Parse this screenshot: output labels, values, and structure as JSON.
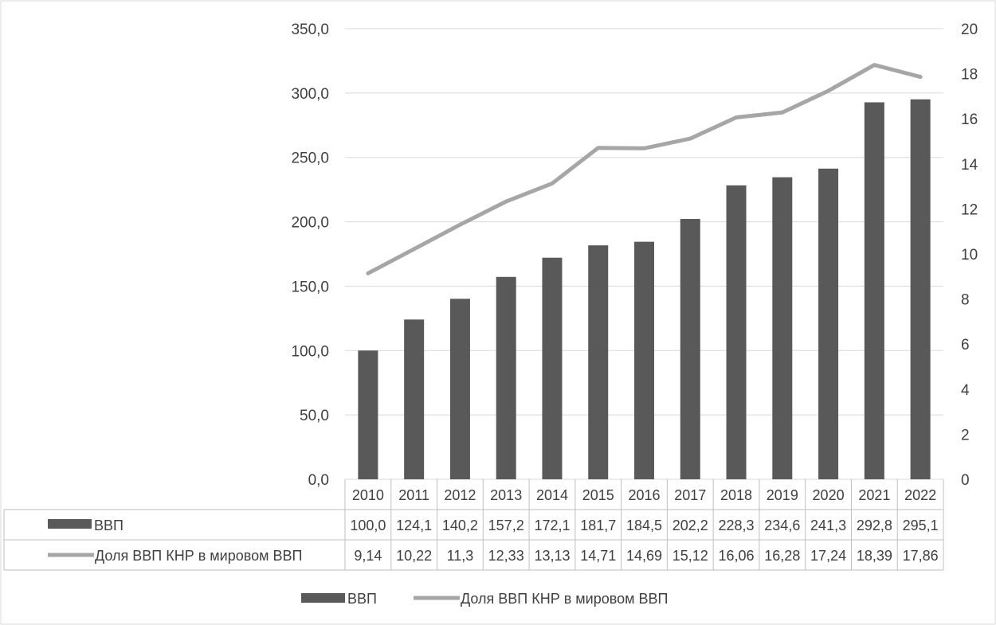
{
  "chart_data": {
    "type": "bar",
    "categories": [
      "2010",
      "2011",
      "2012",
      "2013",
      "2014",
      "2015",
      "2016",
      "2017",
      "2018",
      "2019",
      "2020",
      "2021",
      "2022"
    ],
    "series": [
      {
        "name": "ВВП",
        "type": "bar",
        "axis": "left",
        "values": [
          100.0,
          124.1,
          140.2,
          157.2,
          172.1,
          181.7,
          184.5,
          202.2,
          228.3,
          234.6,
          241.3,
          292.8,
          295.1
        ],
        "labels": [
          "100,0",
          "124,1",
          "140,2",
          "157,2",
          "172,1",
          "181,7",
          "184,5",
          "202,2",
          "228,3",
          "234,6",
          "241,3",
          "292,8",
          "295,1"
        ],
        "color": "#595959"
      },
      {
        "name": "Доля ВВП КНР в мировом ВВП",
        "type": "line",
        "axis": "right",
        "values": [
          9.14,
          10.22,
          11.3,
          12.33,
          13.13,
          14.71,
          14.69,
          15.12,
          16.06,
          16.28,
          17.24,
          18.39,
          17.86
        ],
        "labels": [
          "9,14",
          "10,22",
          "11,3",
          "12,33",
          "13,13",
          "14,71",
          "14,69",
          "15,12",
          "16,06",
          "16,28",
          "17,24",
          "18,39",
          "17,86"
        ],
        "color": "#a6a6a6"
      }
    ],
    "y_left": {
      "min": 0,
      "max": 350,
      "ticks": [
        "0,0",
        "50,0",
        "100,0",
        "150,0",
        "200,0",
        "250,0",
        "300,0",
        "350,0"
      ]
    },
    "y_right": {
      "min": 0,
      "max": 20,
      "ticks": [
        "0",
        "2",
        "4",
        "6",
        "8",
        "10",
        "12",
        "14",
        "16",
        "18",
        "20"
      ]
    },
    "grid": true,
    "legend": "bottom",
    "data_table": true
  }
}
